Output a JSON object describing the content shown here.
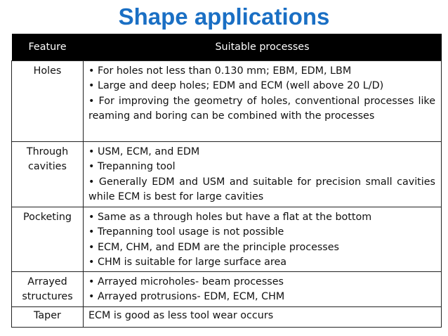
{
  "title": "Shape applications",
  "table": {
    "headers": {
      "feature": "Feature",
      "processes": "Suitable processes"
    },
    "rows": [
      {
        "feature": "Holes",
        "items": [
          "• For holes not less than 0.130 mm; EBM, EDM, LBM",
          "• Large and deep holes; EDM and ECM (well above 20 L/D)",
          "• For improving the geometry of holes, conventional processes like reaming and boring can be combined with the processes"
        ]
      },
      {
        "feature": "Through cavities",
        "items": [
          "• USM, ECM, and EDM",
          "• Trepanning tool",
          "• Generally EDM and USM and suitable for precision small cavities while ECM is best for large cavities"
        ]
      },
      {
        "feature": "Pocketing",
        "items": [
          "• Same as a through holes but have a flat at the bottom",
          "• Trepanning tool usage is not possible",
          "• ECM, CHM, and EDM are the principle processes",
          "• CHM is suitable for large surface area"
        ]
      },
      {
        "feature": "Arrayed structures",
        "items": [
          "• Arrayed microholes- beam processes",
          "• Arrayed protrusions- EDM, ECM, CHM"
        ]
      },
      {
        "feature": "Taper",
        "items": [
          "ECM is good as less tool wear occurs"
        ]
      }
    ]
  }
}
